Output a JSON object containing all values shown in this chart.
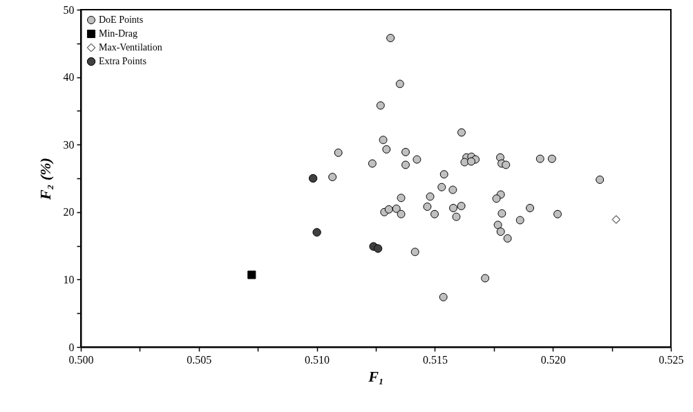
{
  "chart_data": {
    "type": "scatter",
    "xlabel": "F₁",
    "ylabel": "F₂ (%)",
    "xlim": [
      0.5,
      0.525
    ],
    "xticks": [
      {
        "value": 0.5,
        "label": "0.500"
      },
      {
        "value": 0.5025,
        "label": null
      },
      {
        "value": 0.505,
        "label": "0.505"
      },
      {
        "value": 0.5075,
        "label": null
      },
      {
        "value": 0.51,
        "label": "0.510"
      },
      {
        "value": 0.5125,
        "label": null
      },
      {
        "value": 0.515,
        "label": "0.515"
      },
      {
        "value": 0.5175,
        "label": null
      },
      {
        "value": 0.52,
        "label": "0.520"
      },
      {
        "value": 0.5225,
        "label": null
      },
      {
        "value": 0.525,
        "label": "0.525"
      }
    ],
    "ylim": [
      0,
      50
    ],
    "yticks": [
      0,
      {
        "value": 5,
        "label": null
      },
      10,
      {
        "value": 15,
        "label": null
      },
      20,
      {
        "value": 25,
        "label": null
      },
      30,
      {
        "value": 35,
        "label": null
      },
      40,
      {
        "value": 45,
        "label": null
      },
      50
    ],
    "legend": "top left",
    "series": [
      {
        "name": "DoE Points",
        "color": "#c0c0c0",
        "marker": "circle",
        "x": [
          0.51312,
          0.51352,
          0.5127,
          0.51613,
          0.51281,
          0.51091,
          0.51295,
          0.51376,
          0.51235,
          0.51376,
          0.51424,
          0.51634,
          0.51655,
          0.51672,
          0.51626,
          0.51654,
          0.51777,
          0.51783,
          0.51801,
          0.51066,
          0.51539,
          0.51529,
          0.51576,
          0.5148,
          0.51357,
          0.51779,
          0.51761,
          0.51286,
          0.51305,
          0.51337,
          0.51357,
          0.51468,
          0.51499,
          0.51578,
          0.51612,
          0.51591,
          0.51784,
          0.51767,
          0.51779,
          0.51808,
          0.51416,
          0.51713,
          0.51536,
          0.52199,
          0.51903,
          0.5202,
          0.51861,
          0.51946,
          0.51996
        ],
        "values": [
          45.8,
          39.0,
          35.8,
          31.8,
          30.7,
          28.8,
          29.3,
          28.9,
          27.2,
          27.0,
          27.8,
          28.1,
          28.2,
          27.8,
          27.4,
          27.5,
          28.1,
          27.2,
          27.0,
          25.2,
          25.6,
          23.7,
          23.3,
          22.3,
          22.1,
          22.6,
          22.0,
          20.0,
          20.4,
          20.5,
          19.7,
          20.8,
          19.7,
          20.6,
          20.9,
          19.3,
          19.8,
          18.1,
          17.1,
          16.1,
          14.1,
          10.2,
          7.4,
          24.8,
          20.6,
          19.7,
          18.8,
          27.9,
          27.9
        ]
      },
      {
        "name": "Min-Drag",
        "color": "#000000",
        "marker": "square",
        "x": [
          0.50724
        ],
        "values": [
          10.7
        ]
      },
      {
        "name": "Max-Ventilation",
        "color": "#ffffff",
        "marker": "diamond",
        "x": [
          0.52268
        ],
        "values": [
          18.9
        ]
      },
      {
        "name": "Extra Points",
        "color": "#404040",
        "marker": "circle",
        "x": [
          0.50984,
          0.51,
          0.5124,
          0.51259
        ],
        "values": [
          25.0,
          17.0,
          14.9,
          14.6
        ]
      }
    ]
  }
}
